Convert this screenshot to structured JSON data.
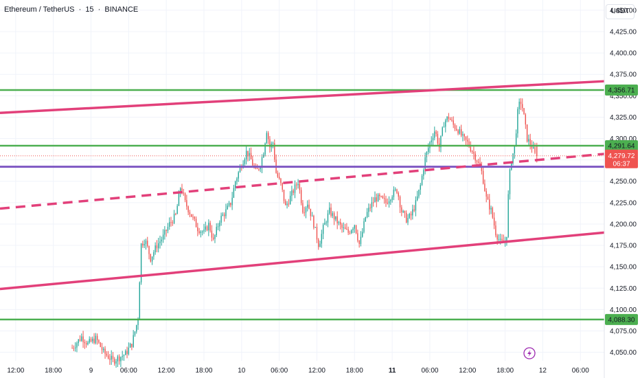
{
  "header": {
    "symbol": "Ethereum / TetherUS",
    "sep1": "·",
    "interval": "15",
    "sep2": "·",
    "exchange": "BINANCE",
    "currency": "USDT"
  },
  "colors": {
    "up": "#26a69a",
    "down": "#ef5350",
    "channel": "#e2407a",
    "support": "#4caf50",
    "purple": "#7e57c2"
  },
  "icon": "lightning-icon",
  "chart_data": {
    "type": "candlestick",
    "y_range": [
      4040,
      4462
    ],
    "y_ticks": [
      "4,450.00",
      "4,425.00",
      "4,400.00",
      "4,375.00",
      "4,350.00",
      "4,325.00",
      "4,300.00",
      "4,275.00",
      "4,250.00",
      "4,225.00",
      "4,200.00",
      "4,175.00",
      "4,150.00",
      "4,125.00",
      "4,100.00",
      "4,075.00",
      "4,050.00"
    ],
    "y_tick_values": [
      4450,
      4425,
      4400,
      4375,
      4350,
      4325,
      4300,
      4275,
      4250,
      4225,
      4200,
      4175,
      4150,
      4125,
      4100,
      4075,
      4050
    ],
    "x_ticks": [
      {
        "label": "12:00",
        "hour": -12,
        "bold": false
      },
      {
        "label": "18:00",
        "hour": -6,
        "bold": false
      },
      {
        "label": "9",
        "hour": 0,
        "bold": false
      },
      {
        "label": "06:00",
        "hour": 6,
        "bold": false
      },
      {
        "label": "12:00",
        "hour": 12,
        "bold": false
      },
      {
        "label": "18:00",
        "hour": 18,
        "bold": false
      },
      {
        "label": "10",
        "hour": 24,
        "bold": false
      },
      {
        "label": "06:00",
        "hour": 30,
        "bold": false
      },
      {
        "label": "12:00",
        "hour": 36,
        "bold": false
      },
      {
        "label": "18:00",
        "hour": 42,
        "bold": false
      },
      {
        "label": "11",
        "hour": 48,
        "bold": true
      },
      {
        "label": "06:00",
        "hour": 54,
        "bold": false
      },
      {
        "label": "12:00",
        "hour": 60,
        "bold": false
      },
      {
        "label": "18:00",
        "hour": 66,
        "bold": false
      },
      {
        "label": "12",
        "hour": 72,
        "bold": false
      },
      {
        "label": "06:00",
        "hour": 78,
        "bold": false
      }
    ],
    "x_range_hours": [
      -14.5,
      81.8
    ],
    "price_levels": [
      {
        "label": "4,356.71",
        "value": 4356.71
      },
      {
        "label": "4,291.64",
        "value": 4291.64
      },
      {
        "label": "4,088.30",
        "value": 4088.3
      }
    ],
    "current_price": {
      "label": "4,279.72",
      "value": 4279.72,
      "countdown": "06:37"
    },
    "purple_level": 4267,
    "trend_lines": [
      {
        "name": "channel-top",
        "style": "solid",
        "points": [
          [
            -14.5,
            4330
          ],
          [
            81.8,
            4367
          ]
        ]
      },
      {
        "name": "channel-bottom",
        "style": "solid",
        "points": [
          [
            -14.5,
            4124
          ],
          [
            81.8,
            4190
          ]
        ]
      },
      {
        "name": "midline",
        "style": "dashed",
        "points": [
          [
            -14.5,
            4218
          ],
          [
            81.8,
            4282
          ]
        ]
      }
    ],
    "waypoints": [
      [
        -3.0,
        4055
      ],
      [
        -1.5,
        4068
      ],
      [
        -0.5,
        4060
      ],
      [
        0.8,
        4066
      ],
      [
        2.0,
        4050
      ],
      [
        3.5,
        4040
      ],
      [
        5.5,
        4048
      ],
      [
        6.5,
        4060
      ],
      [
        7.2,
        4080
      ],
      [
        7.6,
        4095
      ],
      [
        7.9,
        4175
      ],
      [
        8.6,
        4182
      ],
      [
        9.5,
        4160
      ],
      [
        10.5,
        4175
      ],
      [
        11.5,
        4185
      ],
      [
        12.5,
        4200
      ],
      [
        13.5,
        4210
      ],
      [
        14.3,
        4245
      ],
      [
        15.0,
        4225
      ],
      [
        16.0,
        4210
      ],
      [
        17.0,
        4195
      ],
      [
        18.0,
        4190
      ],
      [
        18.8,
        4200
      ],
      [
        19.5,
        4180
      ],
      [
        20.5,
        4205
      ],
      [
        21.5,
        4215
      ],
      [
        22.3,
        4225
      ],
      [
        23.0,
        4250
      ],
      [
        24.0,
        4270
      ],
      [
        24.8,
        4285
      ],
      [
        25.5,
        4275
      ],
      [
        26.3,
        4260
      ],
      [
        27.0,
        4270
      ],
      [
        27.5,
        4285
      ],
      [
        28.0,
        4310
      ],
      [
        28.5,
        4290
      ],
      [
        29.0,
        4295
      ],
      [
        29.5,
        4260
      ],
      [
        30.3,
        4245
      ],
      [
        31.0,
        4220
      ],
      [
        32.0,
        4235
      ],
      [
        33.0,
        4250
      ],
      [
        33.8,
        4215
      ],
      [
        34.5,
        4225
      ],
      [
        35.5,
        4200
      ],
      [
        36.3,
        4175
      ],
      [
        37.0,
        4195
      ],
      [
        38.0,
        4215
      ],
      [
        39.0,
        4205
      ],
      [
        40.0,
        4195
      ],
      [
        41.0,
        4190
      ],
      [
        42.0,
        4200
      ],
      [
        42.8,
        4175
      ],
      [
        43.8,
        4210
      ],
      [
        44.5,
        4220
      ],
      [
        45.3,
        4230
      ],
      [
        46.0,
        4230
      ],
      [
        47.0,
        4225
      ],
      [
        48.0,
        4235
      ],
      [
        48.8,
        4240
      ],
      [
        49.5,
        4215
      ],
      [
        50.3,
        4205
      ],
      [
        51.0,
        4210
      ],
      [
        51.8,
        4225
      ],
      [
        52.5,
        4245
      ],
      [
        53.2,
        4275
      ],
      [
        54.0,
        4295
      ],
      [
        54.8,
        4310
      ],
      [
        55.5,
        4290
      ],
      [
        56.3,
        4320
      ],
      [
        57.0,
        4325
      ],
      [
        57.8,
        4315
      ],
      [
        58.5,
        4310
      ],
      [
        59.3,
        4300
      ],
      [
        60.0,
        4295
      ],
      [
        60.8,
        4285
      ],
      [
        61.5,
        4275
      ],
      [
        62.3,
        4260
      ],
      [
        63.0,
        4230
      ],
      [
        63.8,
        4215
      ],
      [
        64.5,
        4190
      ],
      [
        65.3,
        4178
      ],
      [
        65.8,
        4178
      ],
      [
        66.2,
        4180
      ],
      [
        66.6,
        4250
      ],
      [
        67.0,
        4275
      ],
      [
        67.5,
        4290
      ],
      [
        68.0,
        4330
      ],
      [
        68.4,
        4345
      ],
      [
        68.8,
        4335
      ],
      [
        69.5,
        4300
      ],
      [
        70.3,
        4290
      ],
      [
        70.8,
        4280
      ]
    ],
    "last_candle": {
      "open": 4292,
      "high": 4295,
      "low": 4272,
      "close": 4280
    }
  }
}
